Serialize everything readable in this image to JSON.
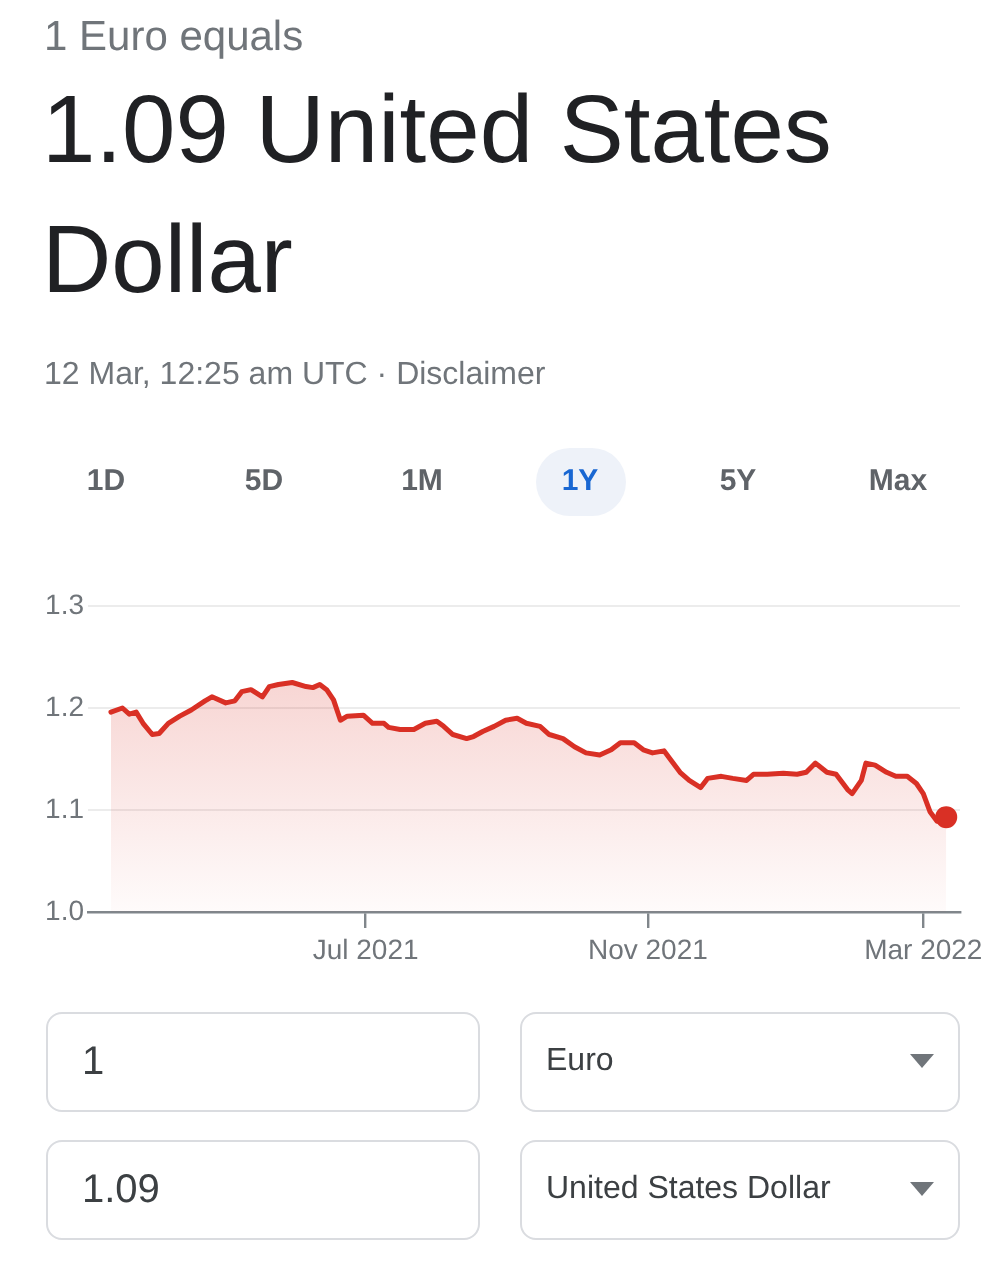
{
  "chart_data": {
    "type": "area",
    "subtitle": "1 Euro equals",
    "title": "1.09 United States Dollar",
    "annotations": [
      "12 Mar, 12:25 am UTC · Disclaimer",
      "1D",
      "5D",
      "1M",
      "1Y",
      "5Y",
      "Max",
      "1",
      "Euro",
      "1.09",
      "United States Dollar"
    ],
    "x": [
      "2021-03-12",
      "2021-03-17",
      "2021-03-20",
      "2021-03-23",
      "2021-03-26",
      "2021-03-30",
      "2021-04-02",
      "2021-04-06",
      "2021-04-11",
      "2021-04-16",
      "2021-04-22",
      "2021-04-25",
      "2021-05-01",
      "2021-05-05",
      "2021-05-08",
      "2021-05-12",
      "2021-05-17",
      "2021-05-20",
      "2021-05-24",
      "2021-05-30",
      "2021-06-05",
      "2021-06-08",
      "2021-06-11",
      "2021-06-14",
      "2021-06-17",
      "2021-06-20",
      "2021-06-23",
      "2021-06-30",
      "2021-07-04",
      "2021-07-09",
      "2021-07-11",
      "2021-07-16",
      "2021-07-22",
      "2021-07-27",
      "2021-08-01",
      "2021-08-04",
      "2021-08-08",
      "2021-08-14",
      "2021-08-17",
      "2021-08-21",
      "2021-08-26",
      "2021-08-31",
      "2021-09-05",
      "2021-09-09",
      "2021-09-15",
      "2021-09-19",
      "2021-09-25",
      "2021-09-30",
      "2021-10-05",
      "2021-10-11",
      "2021-10-16",
      "2021-10-20",
      "2021-10-26",
      "2021-10-30",
      "2021-11-03",
      "2021-11-08",
      "2021-11-11",
      "2021-11-15",
      "2021-11-19",
      "2021-11-24",
      "2021-11-27",
      "2021-12-03",
      "2021-12-08",
      "2021-12-14",
      "2021-12-17",
      "2021-12-23",
      "2021-12-30",
      "2022-01-05",
      "2022-01-09",
      "2022-01-13",
      "2022-01-18",
      "2022-01-22",
      "2022-01-27",
      "2022-01-29",
      "2022-02-02",
      "2022-02-04",
      "2022-02-08",
      "2022-02-13",
      "2022-02-17",
      "2022-02-22",
      "2022-02-26",
      "2022-03-01",
      "2022-03-04",
      "2022-03-07",
      "2022-03-09",
      "2022-03-10",
      "2022-03-11"
    ],
    "series": [
      {
        "color": "#d93025",
        "values": [
          1.196,
          1.2,
          1.194,
          1.196,
          1.185,
          1.174,
          1.175,
          1.185,
          1.192,
          1.198,
          1.207,
          1.211,
          1.205,
          1.207,
          1.216,
          1.218,
          1.211,
          1.221,
          1.223,
          1.225,
          1.221,
          1.22,
          1.223,
          1.218,
          1.208,
          1.188,
          1.192,
          1.193,
          1.185,
          1.185,
          1.181,
          1.179,
          1.179,
          1.185,
          1.187,
          1.182,
          1.174,
          1.17,
          1.172,
          1.177,
          1.182,
          1.188,
          1.19,
          1.185,
          1.182,
          1.174,
          1.17,
          1.162,
          1.156,
          1.154,
          1.159,
          1.166,
          1.166,
          1.159,
          1.156,
          1.158,
          1.149,
          1.137,
          1.129,
          1.122,
          1.131,
          1.133,
          1.131,
          1.129,
          1.135,
          1.135,
          1.136,
          1.135,
          1.137,
          1.146,
          1.137,
          1.135,
          1.12,
          1.116,
          1.129,
          1.146,
          1.144,
          1.137,
          1.133,
          1.133,
          1.126,
          1.116,
          1.098,
          1.089,
          1.1,
          1.09,
          1.093
        ]
      },
      {
        "type": "scatter",
        "x": [
          "2022-03-11"
        ],
        "values": [
          1.093
        ],
        "color": "#d93025",
        "marker": "circle"
      }
    ],
    "xlim": [
      "2021-03-02",
      "2022-03-17"
    ],
    "xticks": [
      {
        "value": "2021-07-01",
        "label": "Jul 2021"
      },
      {
        "value": "2021-11-01",
        "label": "Nov 2021"
      },
      {
        "value": "2022-03-01",
        "label": "Mar 2022"
      }
    ],
    "ylim": [
      1.0,
      1.3
    ],
    "yticks": [
      {
        "value": 1,
        "label": "1.0"
      },
      1.1,
      1.2,
      1.3
    ],
    "grid": "y"
  }
}
